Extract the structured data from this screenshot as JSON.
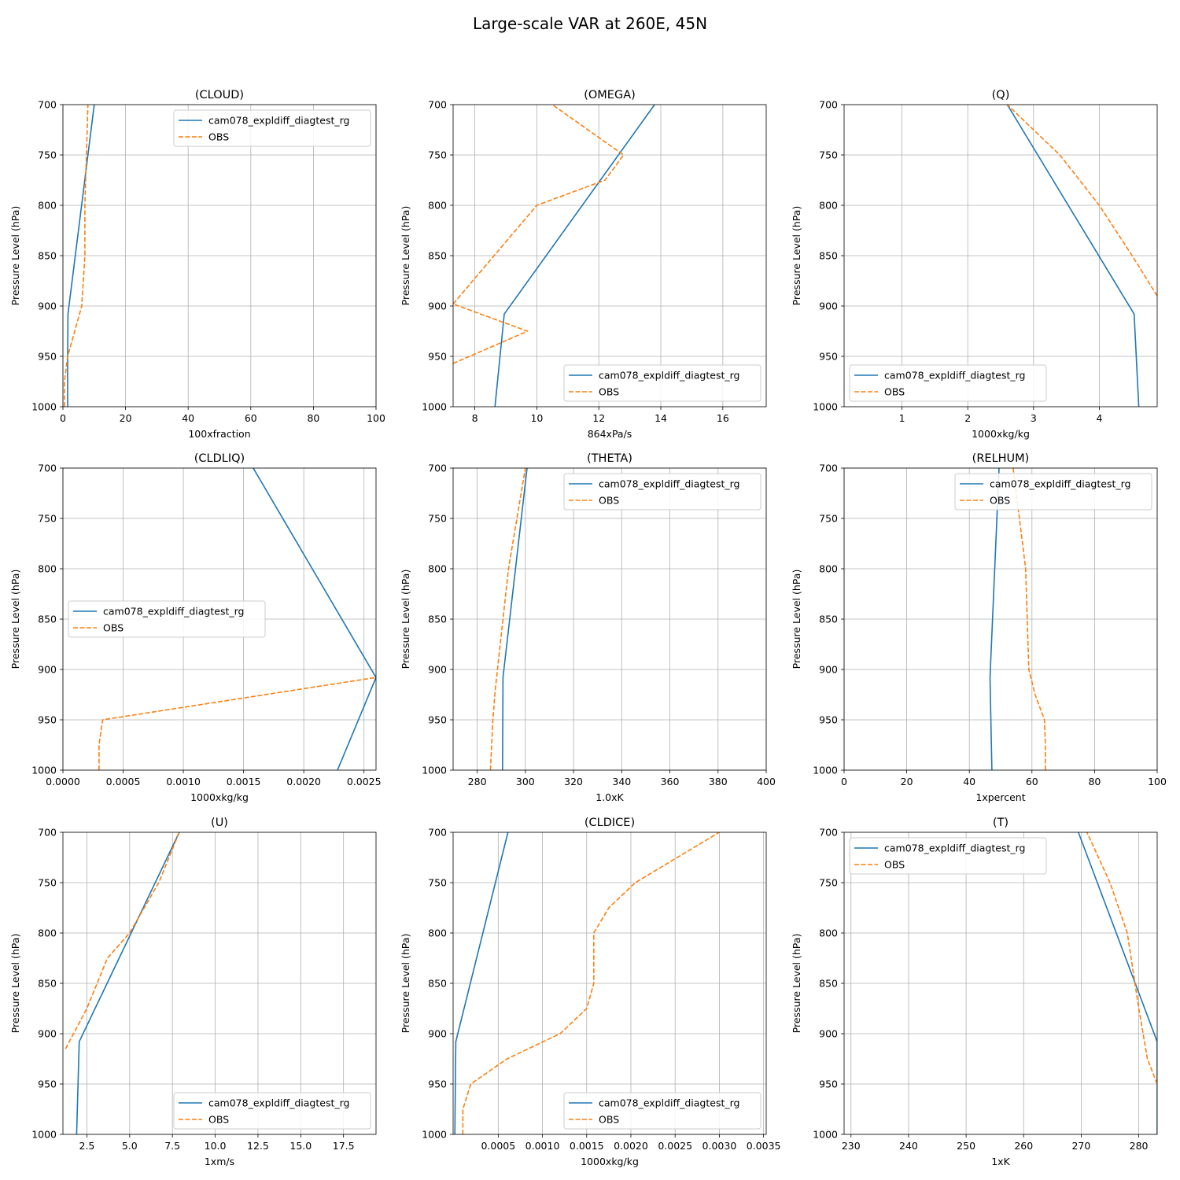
{
  "figure": {
    "title": "Large-scale VAR at 260E, 45N"
  },
  "colors": {
    "model": "#1f77b4",
    "obs": "#ff7f0e",
    "grid": "#b0b0b0",
    "axes": "#000000"
  },
  "chart_data": [
    {
      "type": "line",
      "title": "(CLOUD)",
      "xlabel": "100xfraction",
      "ylabel": "Pressure Level (hPa)",
      "xlim": [
        0,
        100
      ],
      "ylim": [
        1000,
        700
      ],
      "y_inverted": true,
      "grid": true,
      "legend": "upper right",
      "xticks": [
        0,
        20,
        40,
        60,
        80,
        100
      ],
      "xtick_labels": [
        "0",
        "20",
        "40",
        "60",
        "80",
        "100"
      ],
      "yticks": [
        700,
        750,
        800,
        850,
        900,
        950,
        1000
      ],
      "series": [
        {
          "name": "cam078_expldiff_diagtest_rg",
          "style": "solid",
          "x": [
            1.5,
            1.5,
            1.6,
            10
          ],
          "y": [
            1000,
            950,
            908,
            700
          ]
        },
        {
          "name": "OBS",
          "style": "dashed",
          "x": [
            0.5,
            0.5,
            1.5,
            6,
            7,
            7,
            8
          ],
          "y": [
            1000,
            975,
            950,
            900,
            850,
            800,
            700
          ]
        }
      ]
    },
    {
      "type": "line",
      "title": "(OMEGA)",
      "xlabel": "864xPa/s",
      "ylabel": "Pressure Level (hPa)",
      "xlim": [
        7.3,
        17.4
      ],
      "ylim": [
        1000,
        700
      ],
      "y_inverted": true,
      "grid": true,
      "legend": "lower right",
      "xticks": [
        8,
        10,
        12,
        14,
        16
      ],
      "xtick_labels": [
        "8",
        "10",
        "12",
        "14",
        "16"
      ],
      "yticks": [
        700,
        750,
        800,
        850,
        900,
        950,
        1000
      ],
      "series": [
        {
          "name": "cam078_expldiff_diagtest_rg",
          "style": "solid",
          "x": [
            8.65,
            8.95,
            13.8
          ],
          "y": [
            1000,
            908,
            700
          ]
        },
        {
          "name": "OBS",
          "style": "dashed",
          "x": [
            7.3,
            9.7,
            7.3,
            10,
            12.2,
            12.8,
            10.5
          ],
          "y": [
            957,
            925,
            898,
            800,
            775,
            750,
            700
          ]
        }
      ]
    },
    {
      "type": "line",
      "title": "(Q)",
      "xlabel": "1000xkg/kg",
      "ylabel": "Pressure Level (hPa)",
      "xlim": [
        0.12,
        4.88
      ],
      "ylim": [
        1000,
        700
      ],
      "y_inverted": true,
      "grid": true,
      "legend": "lower left",
      "xticks": [
        1,
        2,
        3,
        4
      ],
      "xtick_labels": [
        "1",
        "2",
        "3",
        "4"
      ],
      "yticks": [
        700,
        750,
        800,
        850,
        900,
        950,
        1000
      ],
      "series": [
        {
          "name": "cam078_expldiff_diagtest_rg",
          "style": "solid",
          "x": [
            4.6,
            4.53,
            2.6
          ],
          "y": [
            1000,
            908,
            700
          ]
        },
        {
          "name": "OBS",
          "style": "dashed",
          "x": [
            4.88,
            4.5,
            4.0,
            3.4,
            2.6
          ],
          "y": [
            890,
            850,
            800,
            750,
            700
          ]
        }
      ]
    },
    {
      "type": "line",
      "title": "(CLDLIQ)",
      "xlabel": "1000xkg/kg",
      "ylabel": "Pressure Level (hPa)",
      "xlim": [
        0,
        0.0026
      ],
      "ylim": [
        1000,
        700
      ],
      "y_inverted": true,
      "grid": true,
      "legend": "center left",
      "xticks": [
        0,
        0.0005,
        0.001,
        0.0015,
        0.002,
        0.0025
      ],
      "xtick_labels": [
        "0.0000",
        "0.0005",
        "0.0010",
        "0.0015",
        "0.0020",
        "0.0025"
      ],
      "yticks": [
        700,
        750,
        800,
        850,
        900,
        950,
        1000
      ],
      "series": [
        {
          "name": "cam078_expldiff_diagtest_rg",
          "style": "solid",
          "x": [
            0.00228,
            0.0026,
            0.00158
          ],
          "y": [
            1000,
            908,
            700
          ]
        },
        {
          "name": "OBS",
          "style": "dashed",
          "x": [
            0.0003,
            0.0003,
            0.00033,
            0.0026
          ],
          "y": [
            1000,
            975,
            950,
            908
          ]
        }
      ]
    },
    {
      "type": "line",
      "title": "(THETA)",
      "xlabel": "1.0xK",
      "ylabel": "Pressure Level (hPa)",
      "xlim": [
        270,
        400
      ],
      "ylim": [
        1000,
        700
      ],
      "y_inverted": true,
      "grid": true,
      "legend": "upper right",
      "xticks": [
        280,
        300,
        320,
        340,
        360,
        380,
        400
      ],
      "xtick_labels": [
        "280",
        "300",
        "320",
        "340",
        "360",
        "380",
        "400"
      ],
      "yticks": [
        700,
        750,
        800,
        850,
        900,
        950,
        1000
      ],
      "series": [
        {
          "name": "cam078_expldiff_diagtest_rg",
          "style": "solid",
          "x": [
            290.5,
            290.7,
            300.7
          ],
          "y": [
            1000,
            908,
            700
          ]
        },
        {
          "name": "OBS",
          "style": "dashed",
          "x": [
            285.5,
            286.5,
            287.5,
            293,
            300
          ],
          "y": [
            1000,
            950,
            920,
            800,
            700
          ]
        }
      ]
    },
    {
      "type": "line",
      "title": "(RELHUM)",
      "xlabel": "1xpercent",
      "ylabel": "Pressure Level (hPa)",
      "xlim": [
        0,
        100
      ],
      "ylim": [
        1000,
        700
      ],
      "y_inverted": true,
      "grid": true,
      "legend": "upper right",
      "xticks": [
        0,
        20,
        40,
        60,
        80,
        100
      ],
      "xtick_labels": [
        "0",
        "20",
        "40",
        "60",
        "80",
        "100"
      ],
      "yticks": [
        700,
        750,
        800,
        850,
        900,
        950,
        1000
      ],
      "series": [
        {
          "name": "cam078_expldiff_diagtest_rg",
          "style": "solid",
          "x": [
            47.2,
            46.6,
            49.5
          ],
          "y": [
            1000,
            908,
            700
          ]
        },
        {
          "name": "OBS",
          "style": "dashed",
          "x": [
            64.3,
            64.3,
            64,
            61,
            59,
            58.5,
            58,
            56,
            54
          ],
          "y": [
            1000,
            975,
            950,
            925,
            900,
            850,
            800,
            750,
            700
          ]
        }
      ]
    },
    {
      "type": "line",
      "title": "(U)",
      "xlabel": "1xm/s",
      "ylabel": "Pressure Level (hPa)",
      "xlim": [
        1.1,
        19.4
      ],
      "ylim": [
        1000,
        700
      ],
      "y_inverted": true,
      "grid": true,
      "legend": "lower right",
      "xticks": [
        2.5,
        5,
        7.5,
        10,
        12.5,
        15,
        17.5
      ],
      "xtick_labels": [
        "2.5",
        "5.0",
        "7.5",
        "10.0",
        "12.5",
        "15.0",
        "17.5"
      ],
      "yticks": [
        700,
        750,
        800,
        850,
        900,
        950,
        1000
      ],
      "series": [
        {
          "name": "cam078_expldiff_diagtest_rg",
          "style": "solid",
          "x": [
            1.9,
            2.05,
            7.9
          ],
          "y": [
            1000,
            908,
            700
          ]
        },
        {
          "name": "OBS",
          "style": "dashed",
          "x": [
            1.25,
            2.5,
            3.7,
            5.0,
            6.7,
            7.9
          ],
          "y": [
            915,
            875,
            825,
            800,
            750,
            700
          ]
        }
      ]
    },
    {
      "type": "line",
      "title": "(CLDICE)",
      "xlabel": "1000xkg/kg",
      "ylabel": "Pressure Level (hPa)",
      "xlim": [
        -1e-05,
        0.00353
      ],
      "ylim": [
        1000,
        700
      ],
      "y_inverted": true,
      "grid": true,
      "legend": "lower right",
      "xticks": [
        0.0005,
        0.001,
        0.0015,
        0.002,
        0.0025,
        0.003,
        0.0035
      ],
      "xtick_labels": [
        "0.0005",
        "0.0010",
        "0.0015",
        "0.0020",
        "0.0025",
        "0.0030",
        "0.0035"
      ],
      "yticks": [
        700,
        750,
        800,
        850,
        900,
        950,
        1000
      ],
      "series": [
        {
          "name": "cam078_expldiff_diagtest_rg",
          "style": "solid",
          "x": [
            1e-05,
            2e-05,
            0.00061
          ],
          "y": [
            1000,
            908,
            700
          ]
        },
        {
          "name": "OBS",
          "style": "dashed",
          "x": [
            0.0001,
            0.0001,
            0.00019,
            0.0006,
            0.0012,
            0.0015,
            0.00158,
            0.00158,
            0.00175,
            0.00205,
            0.003
          ],
          "y": [
            1000,
            975,
            950,
            925,
            900,
            875,
            850,
            800,
            775,
            750,
            700
          ]
        }
      ]
    },
    {
      "type": "line",
      "title": "(T)",
      "xlabel": "1xK",
      "ylabel": "Pressure Level (hPa)",
      "xlim": [
        228.8,
        283.2
      ],
      "ylim": [
        1000,
        700
      ],
      "y_inverted": true,
      "grid": true,
      "legend": "upper left",
      "xticks": [
        230,
        240,
        250,
        260,
        270,
        280
      ],
      "xtick_labels": [
        "230",
        "240",
        "250",
        "260",
        "270",
        "280"
      ],
      "yticks": [
        700,
        750,
        800,
        850,
        900,
        950,
        1000
      ],
      "series": [
        {
          "name": "cam078_expldiff_diagtest_rg",
          "style": "solid",
          "x": [
            283.2,
            283.2,
            269.5
          ],
          "y": [
            1000,
            908,
            700
          ]
        },
        {
          "name": "OBS",
          "style": "dashed",
          "x": [
            283.2,
            281.5,
            280,
            278,
            275,
            271
          ],
          "y": [
            950,
            925,
            875,
            800,
            750,
            700
          ]
        }
      ]
    }
  ]
}
